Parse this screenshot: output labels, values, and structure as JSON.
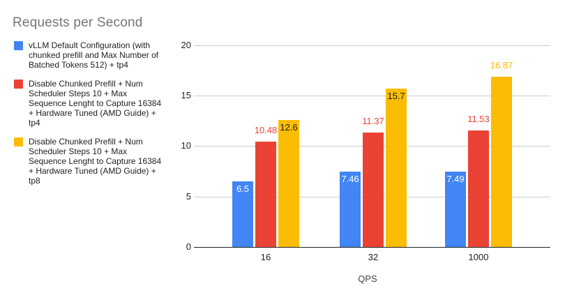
{
  "chart_data": {
    "type": "bar",
    "title": "Requests per Second",
    "xlabel": "QPS",
    "ylabel": "",
    "categories": [
      "16",
      "32",
      "1000"
    ],
    "series": [
      {
        "name": "vLLM Default Configuration (with chunked prefill and Max Number of Batched Tokens 512) + tp4",
        "color": "#4285F4",
        "values": [
          6.5,
          7.46,
          7.49
        ],
        "value_labels": [
          "6.5",
          "7.46",
          "7.49"
        ],
        "value_label_style": "inside",
        "value_label_color": "#ffffff"
      },
      {
        "name": "Disable Chunked Prefill + Num Scheduler Steps 10 + Max Sequence Lenght to Capture 16384 + Hardware Tuned (AMD Guide) + tp4",
        "color": "#EA4335",
        "values": [
          10.48,
          11.37,
          11.53
        ],
        "value_labels": [
          "10.48",
          "11.37",
          "11.53"
        ],
        "value_label_style": "above",
        "value_label_color": "#EA4335"
      },
      {
        "name": "Disable Chunked Prefill + Num Scheduler Steps 10 + Max Sequence Lenght to Capture 16384 + Hardware Tuned (AMD Guide) + tp8",
        "color": "#FBBC04",
        "values": [
          12.6,
          15.7,
          16.87
        ],
        "value_labels": [
          "12.6",
          "15.7",
          "16.87"
        ],
        "value_label_style": "inside",
        "value_label_color": "#212121",
        "value_label_style_overrides": {
          "2": "above"
        },
        "value_label_color_overrides": {
          "2": "#FBBC04"
        }
      }
    ],
    "ylim": [
      0,
      20
    ],
    "yticks": [
      0,
      5,
      10,
      15,
      20
    ],
    "grid": true,
    "legend_position": "left"
  }
}
